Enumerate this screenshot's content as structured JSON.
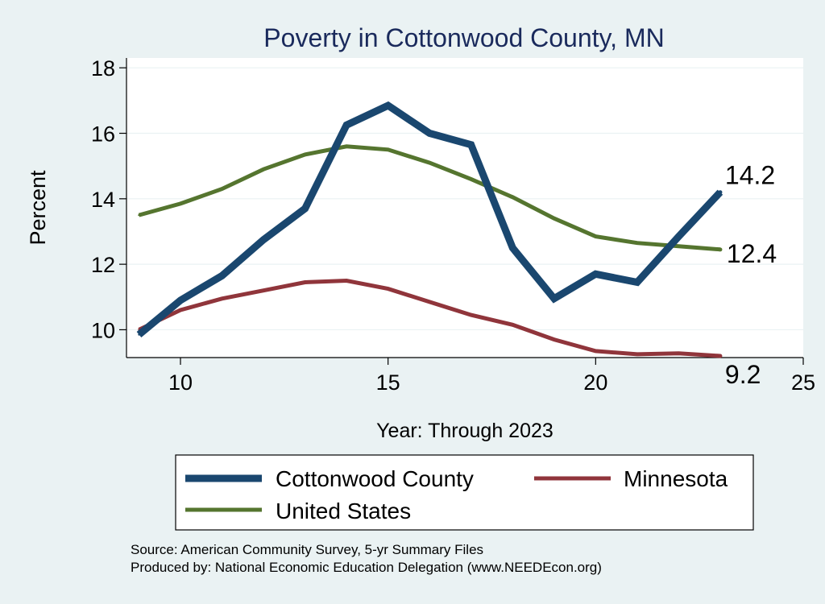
{
  "chart_data": {
    "type": "line",
    "title": "Poverty in Cottonwood County, MN",
    "xlabel": "Year: Through 2023",
    "ylabel": "Percent",
    "xlim": [
      8.7,
      25
    ],
    "ylim": [
      9.15,
      18.3
    ],
    "x_ticks": [
      10,
      15,
      20,
      25
    ],
    "y_ticks": [
      10,
      12,
      14,
      16,
      18
    ],
    "grid": true,
    "legend_position": "bottom",
    "series": [
      {
        "name": "Cottonwood County",
        "color": "#1a476f",
        "x": [
          9,
          10,
          11,
          12,
          13,
          14,
          15,
          16,
          17,
          18,
          19,
          20,
          21,
          22,
          23
        ],
        "values": [
          9.85,
          10.9,
          11.65,
          12.75,
          13.7,
          16.25,
          16.85,
          16.0,
          15.65,
          12.5,
          10.95,
          11.7,
          11.45,
          12.85,
          14.2
        ],
        "end_label": "14.2"
      },
      {
        "name": "Minnesota",
        "color": "#90353b",
        "x": [
          9,
          10,
          11,
          12,
          13,
          14,
          15,
          16,
          17,
          18,
          19,
          20,
          21,
          22,
          23
        ],
        "values": [
          10.0,
          10.6,
          10.95,
          11.2,
          11.45,
          11.5,
          11.25,
          10.85,
          10.45,
          10.15,
          9.7,
          9.35,
          9.25,
          9.28,
          9.2
        ],
        "end_label": "9.2"
      },
      {
        "name": "United States",
        "color": "#55752f",
        "x": [
          9,
          10,
          11,
          12,
          13,
          14,
          15,
          16,
          17,
          18,
          19,
          20,
          21,
          22,
          23
        ],
        "values": [
          13.5,
          13.85,
          14.3,
          14.9,
          15.35,
          15.6,
          15.5,
          15.1,
          14.6,
          14.05,
          13.4,
          12.85,
          12.65,
          12.55,
          12.45
        ],
        "end_label": "12.4"
      }
    ],
    "legend": {
      "entries": [
        "Cottonwood County",
        "Minnesota",
        "United States"
      ]
    }
  },
  "footer": {
    "source": "Source: American Community Survey, 5-yr Summary Files",
    "produced_by": "Produced by: National Economic Education Delegation (www.NEEDEcon.org)"
  }
}
